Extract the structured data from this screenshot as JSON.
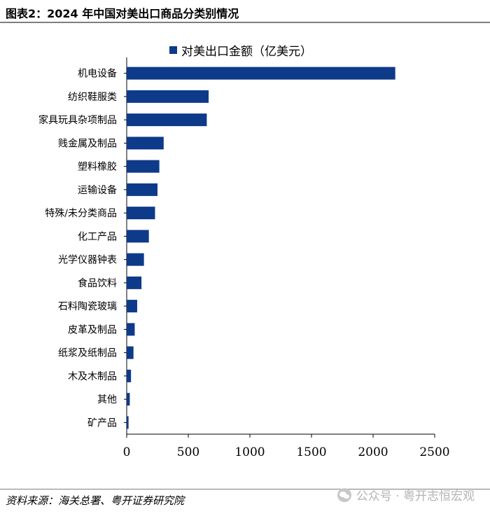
{
  "figure": {
    "title": "图表2：2024 年中国对美出口商品分类别情况",
    "source": "资料来源：海关总署、粤开证券研究院",
    "watermark": "公众号 · 粤开志恒宏观"
  },
  "colors": {
    "bar": "#0e3a8a",
    "axis": "#000000"
  },
  "chart_data": {
    "type": "bar",
    "orientation": "horizontal",
    "categories": [
      "机电设备",
      "纺织鞋服类",
      "家具玩具杂项制品",
      "贱金属及制品",
      "塑料橡胶",
      "运输设备",
      "特殊/未分类商品",
      "化工产品",
      "光学仪器钟表",
      "食品饮料",
      "石料陶瓷玻璃",
      "皮革及制品",
      "纸浆及纸制品",
      "木及木制品",
      "其他",
      "矿产品"
    ],
    "series": [
      {
        "name": "对美出口金额（亿美元）",
        "values": [
          2180,
          665,
          650,
          300,
          265,
          250,
          230,
          180,
          140,
          120,
          85,
          65,
          55,
          35,
          25,
          15
        ]
      }
    ],
    "xlim": [
      0,
      2500
    ],
    "xticks": [
      0,
      500,
      1000,
      1500,
      2000,
      2500
    ],
    "legend_position": "top-center",
    "grid": false
  }
}
